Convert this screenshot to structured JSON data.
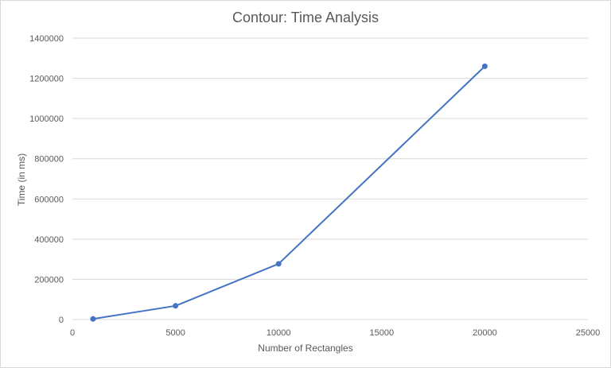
{
  "chart_data": {
    "type": "scatter",
    "title": "Contour: Time Analysis",
    "xlabel": "Number  of Rectangles",
    "ylabel": "Time (in ms)",
    "xlim": [
      0,
      25000
    ],
    "ylim": [
      0,
      1400000
    ],
    "x_ticks": [
      "0",
      "5000",
      "10000",
      "15000",
      "20000",
      "25000"
    ],
    "y_ticks": [
      "0",
      "200000",
      "400000",
      "600000",
      "800000",
      "1000000",
      "1200000",
      "1400000"
    ],
    "grid": true,
    "legend": "none",
    "series": [
      {
        "x": [
          1000,
          5000,
          10000,
          20000
        ],
        "y": [
          3000,
          68000,
          277000,
          1260000
        ]
      }
    ],
    "colors": {
      "series": "#4472c4",
      "grid": "#d9d9d9",
      "text": "#595959"
    }
  }
}
